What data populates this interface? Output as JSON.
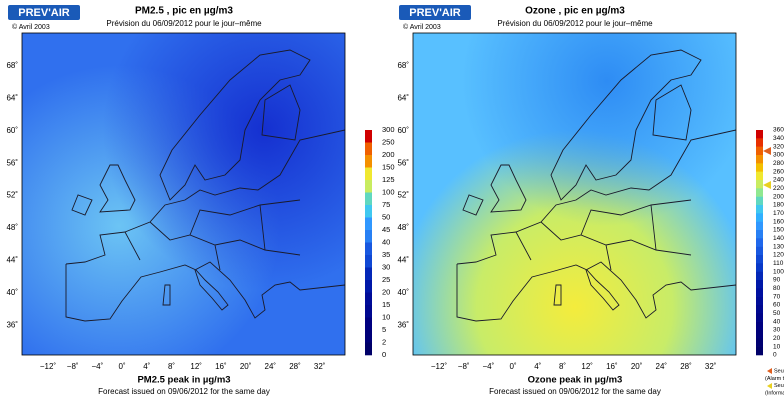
{
  "panels": [
    {
      "logo": "PREV'AIR",
      "copyright": "© Avril 2003",
      "title": "PM2.5 , pic en µg/m3",
      "subtitle": "Prévision du 06/09/2012 pour le jour–même",
      "lat_labels": [
        "68˚",
        "64˚",
        "60˚",
        "56˚",
        "52˚",
        "48˚",
        "44˚",
        "40˚",
        "36˚"
      ],
      "lon_labels": [
        "−12˚",
        "−8˚",
        "−4˚",
        "0˚",
        "4˚",
        "8˚",
        "12˚",
        "16˚",
        "20˚",
        "24˚",
        "28˚",
        "32˚"
      ],
      "colorbar_labels": [
        "300",
        "250",
        "200",
        "150",
        "125",
        "100",
        "75",
        "50",
        "45",
        "40",
        "35",
        "30",
        "25",
        "20",
        "15",
        "10",
        "5",
        "2",
        "0"
      ],
      "caption": "PM2.5 peak in µg/m3",
      "caption2": "Forecast issued on 09/06/2012 for the same day"
    },
    {
      "logo": "PREV'AIR",
      "copyright": "© Avril 2003",
      "title": "Ozone , pic en µg/m3",
      "subtitle": "Prévision du 06/09/2012 pour le jour–même",
      "lat_labels": [
        "68˚",
        "64˚",
        "60˚",
        "56˚",
        "52˚",
        "48˚",
        "44˚",
        "40˚",
        "36˚"
      ],
      "lon_labels": [
        "−12˚",
        "−8˚",
        "−4˚",
        "0˚",
        "4˚",
        "8˚",
        "12˚",
        "16˚",
        "20˚",
        "24˚",
        "28˚",
        "32˚"
      ],
      "colorbar_labels": [
        "360",
        "340",
        "320",
        "300",
        "280",
        "260",
        "240",
        "220",
        "200",
        "180",
        "170",
        "160",
        "150",
        "140",
        "130",
        "120",
        "110",
        "100",
        "90",
        "80",
        "70",
        "60",
        "50",
        "40",
        "30",
        "20",
        "10",
        "0"
      ],
      "caption": "Ozone peak in µg/m3",
      "caption2": "Forecast issued on 09/06/2012 for the same day",
      "legend": [
        "Seuil d'alerte",
        "(Alarm threshold)",
        "Seuil d'information",
        "(Information threshold)"
      ]
    }
  ]
}
